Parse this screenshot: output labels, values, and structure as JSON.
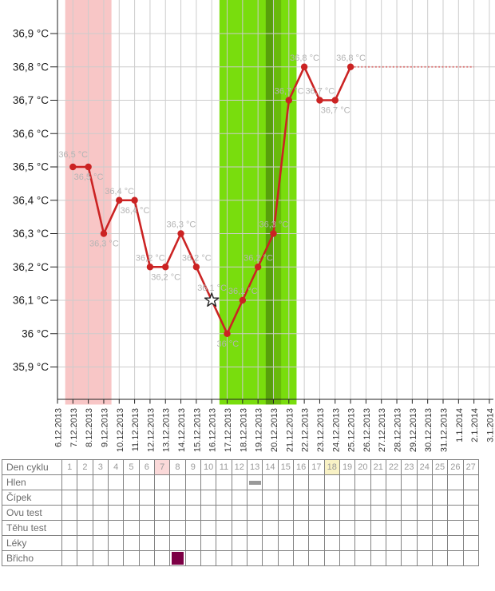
{
  "chart_data": {
    "type": "line",
    "title": "",
    "unit": "°C",
    "y_axis": {
      "tick_labels": [
        "36,9 °C",
        "36,8 °C",
        "36,7 °C",
        "36,6 °C",
        "36,5 °C",
        "36,4 °C",
        "36,3 °C",
        "36,2 °C",
        "36,1 °C",
        "36 °C",
        "35,9 °C"
      ],
      "tick_values": [
        36.9,
        36.8,
        36.7,
        36.6,
        36.5,
        36.4,
        36.3,
        36.2,
        36.1,
        36.0,
        35.9
      ],
      "range": [
        35.8,
        37.0
      ]
    },
    "x_axis": {
      "dates": [
        "6.12.2013",
        "7.12.2013",
        "8.12.2013",
        "9.12.2013",
        "10.12.2013",
        "11.12.2013",
        "12.12.2013",
        "13.12.2013",
        "14.12.2013",
        "15.12.2013",
        "16.12.2013",
        "17.12.2013",
        "18.12.2013",
        "19.12.2013",
        "20.12.2013",
        "21.12.2013",
        "22.12.2013",
        "23.12.2013",
        "24.12.2013",
        "25.12.2013",
        "26.12.2013",
        "27.12.2013",
        "28.12.2013",
        "29.12.2013",
        "30.12.2013",
        "31.12.2013",
        "1.1.2014",
        "2.1.2014",
        "3.1.2014"
      ]
    },
    "series": [
      {
        "name": "basal-temperature",
        "color": "#cb2323",
        "points": [
          {
            "date": "7.12.2013",
            "temp": 36.5,
            "label": "36,5 °C",
            "label_pos": "above-left",
            "marker": "dot"
          },
          {
            "date": "8.12.2013",
            "temp": 36.5,
            "label": "36,5 °C",
            "label_pos": "below",
            "marker": "dot"
          },
          {
            "date": "9.12.2013",
            "temp": 36.3,
            "label": "36,3 °C",
            "label_pos": "below",
            "marker": "dot"
          },
          {
            "date": "10.12.2013",
            "temp": 36.4,
            "label": "36,4 °C",
            "label_pos": "above",
            "marker": "dot"
          },
          {
            "date": "11.12.2013",
            "temp": 36.4,
            "label": "36,4 °C",
            "label_pos": "below",
            "marker": "dot"
          },
          {
            "date": "12.12.2013",
            "temp": 36.2,
            "label": "36,2 °C",
            "label_pos": "above",
            "marker": "dot"
          },
          {
            "date": "13.12.2013",
            "temp": 36.2,
            "label": "36,2 °C",
            "label_pos": "below",
            "marker": "dot"
          },
          {
            "date": "14.12.2013",
            "temp": 36.3,
            "label": "36,3 °C",
            "label_pos": "above",
            "marker": "dot"
          },
          {
            "date": "15.12.2013",
            "temp": 36.2,
            "label": "36,2 °C",
            "label_pos": "above",
            "marker": "dot"
          },
          {
            "date": "16.12.2013",
            "temp": 36.1,
            "label": "36,1 °C",
            "label_pos": "above-left",
            "marker": "star"
          },
          {
            "date": "17.12.2013",
            "temp": 36.0,
            "label": "36 °C",
            "label_pos": "below",
            "marker": "dot"
          },
          {
            "date": "18.12.2013",
            "temp": 36.1,
            "label": "36,1 °C",
            "label_pos": "above",
            "marker": "dot"
          },
          {
            "date": "19.12.2013",
            "temp": 36.2,
            "label": "36,2 °C",
            "label_pos": "above",
            "marker": "dot"
          },
          {
            "date": "20.12.2013",
            "temp": 36.3,
            "label": "36,3 °C",
            "label_pos": "above",
            "marker": "dot"
          },
          {
            "date": "21.12.2013",
            "temp": 36.7,
            "label": "36,7 °C",
            "label_pos": "above",
            "marker": "dot"
          },
          {
            "date": "22.12.2013",
            "temp": 36.8,
            "label": "36,8 °C",
            "label_pos": "above",
            "marker": "dot"
          },
          {
            "date": "23.12.2013",
            "temp": 36.7,
            "label": "36,7 °C",
            "label_pos": "above",
            "marker": "dot"
          },
          {
            "date": "24.12.2013",
            "temp": 36.7,
            "label": "36,7 °C",
            "label_pos": "below",
            "marker": "dot"
          },
          {
            "date": "25.12.2013",
            "temp": 36.8,
            "label": "36,8 °C",
            "label_pos": "above",
            "marker": "dot"
          }
        ]
      }
    ],
    "forecast_line": {
      "temp": 36.8,
      "from_date": "25.12.2013",
      "to_date": "2.1.2014",
      "color": "#da6f6f"
    },
    "bands": [
      {
        "name": "menstruation-band",
        "color": "#f8c6c6",
        "from_date": "7.12.2013",
        "to_date": "9.12.2013"
      },
      {
        "name": "fertile-window-band",
        "color": "#79dd0d",
        "from_date": "17.12.2013",
        "to_date": "21.12.2013"
      },
      {
        "name": "ovulation-day-band",
        "color": "#57a00b",
        "date": "20.12.2013",
        "half": "left"
      },
      {
        "name": "ovulation-next-band",
        "color": "#69ba0b",
        "date": "20.12.2013",
        "half": "right"
      }
    ],
    "colors": {
      "grid": "#cccccc",
      "axis": "#222222",
      "point_label": "#b4b4b4",
      "date_label": "#333333",
      "y_label": "#1a1a1a"
    },
    "legend": "off",
    "grid": "on"
  },
  "table": {
    "header_label": "Den cyklu",
    "day_numbers": [
      "1",
      "2",
      "3",
      "4",
      "5",
      "6",
      "7",
      "8",
      "9",
      "10",
      "11",
      "12",
      "13",
      "14",
      "15",
      "16",
      "17",
      "18",
      "19",
      "20",
      "21",
      "22",
      "23",
      "24",
      "25",
      "26",
      "27"
    ],
    "day_highlights": [
      {
        "day": 7,
        "color": "#fbd9d9"
      },
      {
        "day": 18,
        "color": "#f9f2c5"
      }
    ],
    "rows": [
      {
        "label": "Hlen",
        "marks": [
          {
            "day": 13,
            "type": "gray-dash",
            "color": "#999999"
          }
        ]
      },
      {
        "label": "Čípek",
        "marks": []
      },
      {
        "label": "Ovu test",
        "marks": []
      },
      {
        "label": "Těhu test",
        "marks": []
      },
      {
        "label": "Léky",
        "marks": []
      },
      {
        "label": "Břicho",
        "marks": [
          {
            "day": 8,
            "type": "filled-square",
            "color": "#7c0045"
          }
        ]
      }
    ]
  }
}
